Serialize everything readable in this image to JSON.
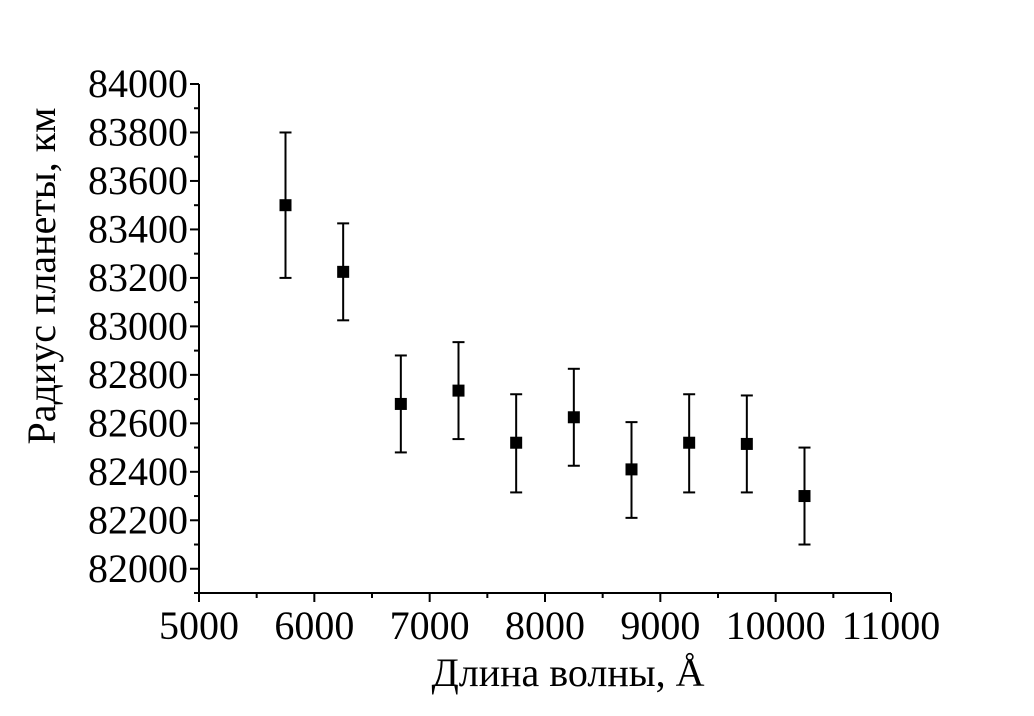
{
  "chart_data": {
    "type": "scatter",
    "title": "",
    "xlabel": "Длина волны, Å",
    "ylabel": "Радиус планеты, км",
    "xlim": [
      5000,
      11000
    ],
    "ylim": [
      81900,
      84000
    ],
    "x_ticks": [
      5000,
      6000,
      7000,
      8000,
      9000,
      10000,
      11000
    ],
    "y_ticks": [
      82000,
      82200,
      82400,
      82600,
      82800,
      83000,
      83200,
      83400,
      83600,
      83800,
      84000
    ],
    "grid": false,
    "legend": "none",
    "marker": "square",
    "color": "#000000",
    "series": [
      {
        "x": [
          5750,
          6250,
          6750,
          7250,
          7750,
          8250,
          8750,
          9250,
          9750,
          10250
        ],
        "y": [
          83500,
          83225,
          82680,
          82735,
          82520,
          82625,
          82410,
          82520,
          82515,
          82300
        ],
        "y_err_upper": [
          83800,
          83425,
          82880,
          82935,
          82720,
          82825,
          82605,
          82720,
          82715,
          82500
        ],
        "y_err_lower": [
          83200,
          83025,
          82480,
          82535,
          82315,
          82425,
          82210,
          82315,
          82315,
          82100
        ]
      }
    ]
  }
}
